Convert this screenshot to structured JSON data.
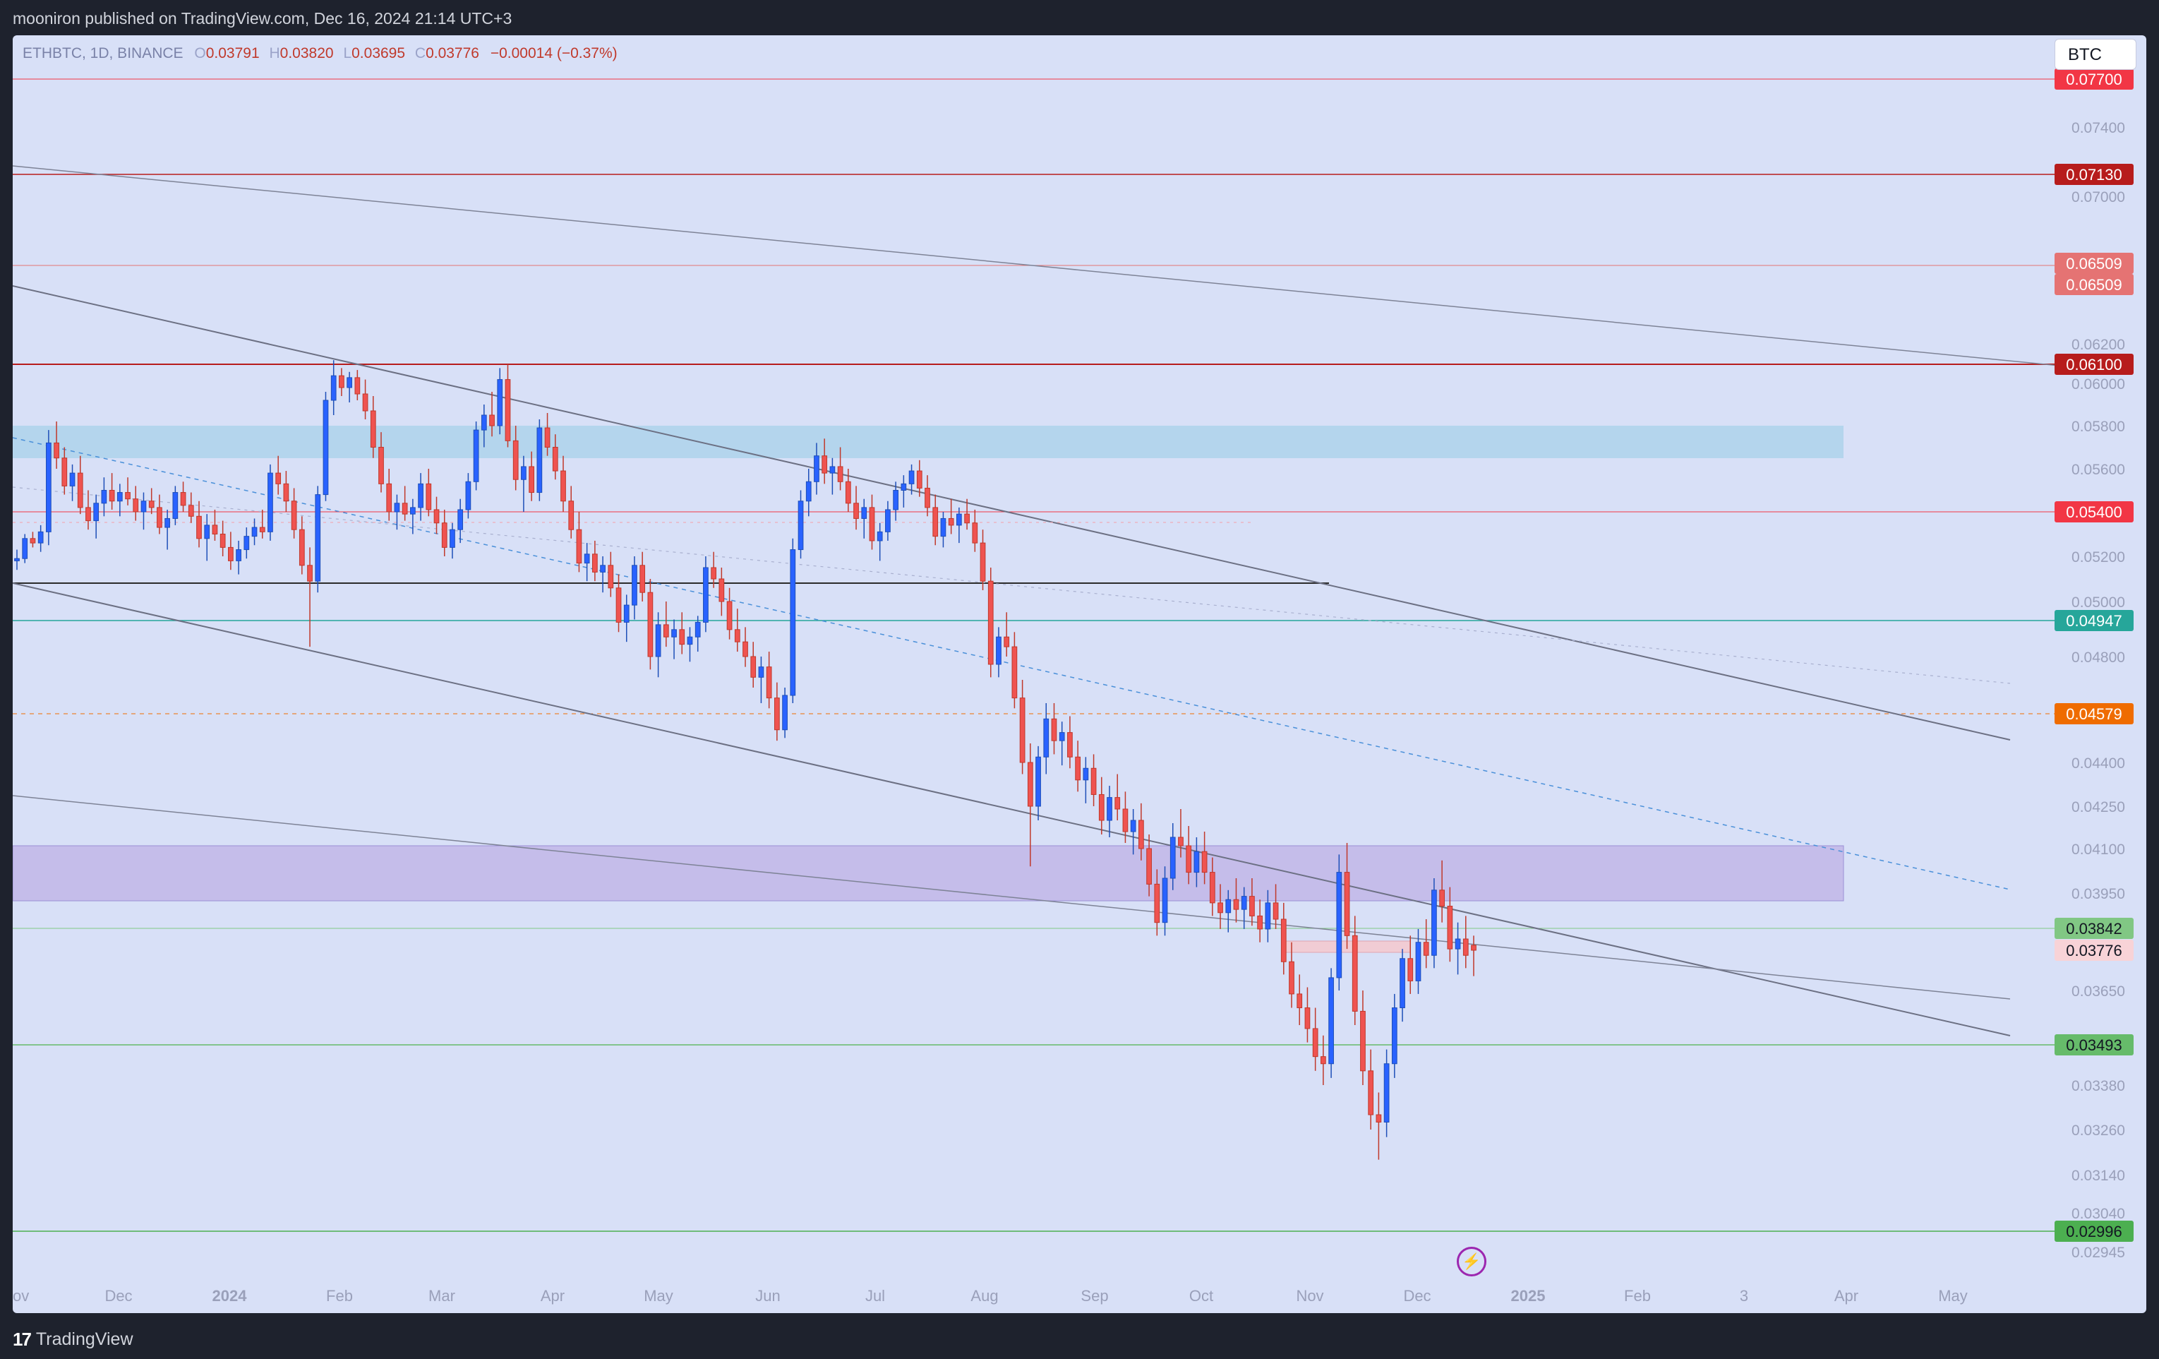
{
  "header": {
    "published_text": "mooniron published on TradingView.com, Dec 16, 2024 21:14 UTC+3"
  },
  "legend": {
    "symbol": "ETHBTC, 1D, BINANCE",
    "o_label": "O",
    "o_value": "0.03791",
    "h_label": "H",
    "h_value": "0.03820",
    "l_label": "L",
    "l_value": "0.03695",
    "c_label": "C",
    "c_value": "0.03776",
    "change": "−0.00014 (−0.37%)"
  },
  "currency_button": "BTC",
  "footer": {
    "brand": "TradingView",
    "logo_mark": "17"
  },
  "bolt_icon": "⚡",
  "chart_data": {
    "type": "candlestick",
    "y_ticks": [
      "0.07400",
      "0.07000",
      "0.06200",
      "0.06000",
      "0.05800",
      "0.05600",
      "0.05200",
      "0.05000",
      "0.04800",
      "0.04400",
      "0.04250",
      "0.04100",
      "0.03950",
      "0.03650",
      "0.03380",
      "0.03260",
      "0.03140",
      "0.03040",
      "0.02945"
    ],
    "x_ticks": [
      "ov",
      "Dec",
      "2024",
      "Feb",
      "Mar",
      "Apr",
      "May",
      "Jun",
      "Jul",
      "Aug",
      "Sep",
      "Oct",
      "Nov",
      "Dec",
      "2025",
      "Feb",
      "3",
      "Apr",
      "May"
    ],
    "price_labels": [
      {
        "value": "0.07700",
        "color": "#f23645"
      },
      {
        "value": "0.07130",
        "color": "#b71c1c"
      },
      {
        "value": "0.06509",
        "color": "#e57373"
      },
      {
        "value": "0.06509",
        "color": "#e57373"
      },
      {
        "value": "0.06100",
        "color": "#b71c1c"
      },
      {
        "value": "0.05400",
        "color": "#f23645"
      },
      {
        "value": "0.04947",
        "color": "#26a69a"
      },
      {
        "value": "0.04579",
        "color": "#ef6c00"
      },
      {
        "value": "0.03842",
        "color": "#81c784"
      },
      {
        "value": "0.03776",
        "color": "#f8d3d7"
      },
      {
        "value": "0.03493",
        "color": "#66bb6a"
      },
      {
        "value": "0.02996",
        "color": "#4caf50"
      }
    ],
    "candles": [
      [
        0.0518,
        0.0523,
        0.0514,
        0.0519
      ],
      [
        0.0519,
        0.053,
        0.0517,
        0.0528
      ],
      [
        0.0528,
        0.0531,
        0.0524,
        0.0526
      ],
      [
        0.0526,
        0.0534,
        0.0522,
        0.0531
      ],
      [
        0.0531,
        0.0578,
        0.0525,
        0.0572
      ],
      [
        0.0572,
        0.0582,
        0.056,
        0.0565
      ],
      [
        0.0565,
        0.057,
        0.0548,
        0.0552
      ],
      [
        0.0552,
        0.0562,
        0.0545,
        0.0558
      ],
      [
        0.0558,
        0.0566,
        0.0539,
        0.0542
      ],
      [
        0.0542,
        0.055,
        0.0532,
        0.0536
      ],
      [
        0.0536,
        0.0548,
        0.0528,
        0.0544
      ],
      [
        0.0544,
        0.0556,
        0.0538,
        0.055
      ],
      [
        0.055,
        0.0558,
        0.0541,
        0.0545
      ],
      [
        0.0545,
        0.0553,
        0.0538,
        0.0549
      ],
      [
        0.0549,
        0.0556,
        0.0543,
        0.0546
      ],
      [
        0.0546,
        0.0552,
        0.0536,
        0.054
      ],
      [
        0.054,
        0.0549,
        0.0532,
        0.0545
      ],
      [
        0.0545,
        0.0551,
        0.0539,
        0.0542
      ],
      [
        0.0542,
        0.0548,
        0.053,
        0.0533
      ],
      [
        0.0533,
        0.0541,
        0.0523,
        0.0537
      ],
      [
        0.0537,
        0.0552,
        0.0534,
        0.0549
      ],
      [
        0.0549,
        0.0554,
        0.054,
        0.0543
      ],
      [
        0.0543,
        0.0549,
        0.0535,
        0.0538
      ],
      [
        0.0538,
        0.0545,
        0.0524,
        0.0528
      ],
      [
        0.0528,
        0.0539,
        0.0518,
        0.0534
      ],
      [
        0.0534,
        0.0541,
        0.0527,
        0.053
      ],
      [
        0.053,
        0.0536,
        0.052,
        0.0524
      ],
      [
        0.0524,
        0.0531,
        0.0514,
        0.0518
      ],
      [
        0.0518,
        0.0527,
        0.0512,
        0.0523
      ],
      [
        0.0523,
        0.0533,
        0.0519,
        0.0529
      ],
      [
        0.0529,
        0.0537,
        0.0525,
        0.0533
      ],
      [
        0.0533,
        0.0541,
        0.0528,
        0.0531
      ],
      [
        0.0531,
        0.0562,
        0.0527,
        0.0558
      ],
      [
        0.0558,
        0.0566,
        0.0548,
        0.0553
      ],
      [
        0.0553,
        0.0559,
        0.054,
        0.0545
      ],
      [
        0.0545,
        0.0551,
        0.0528,
        0.0532
      ],
      [
        0.0532,
        0.0538,
        0.0512,
        0.0516
      ],
      [
        0.0516,
        0.0524,
        0.0484,
        0.0509
      ],
      [
        0.0509,
        0.0552,
        0.0504,
        0.0548
      ],
      [
        0.0548,
        0.0596,
        0.0545,
        0.0592
      ],
      [
        0.0592,
        0.0612,
        0.0585,
        0.0604
      ],
      [
        0.0604,
        0.0608,
        0.0594,
        0.0598
      ],
      [
        0.0598,
        0.0606,
        0.0591,
        0.0603
      ],
      [
        0.0603,
        0.0607,
        0.0592,
        0.0595
      ],
      [
        0.0595,
        0.0602,
        0.0583,
        0.0587
      ],
      [
        0.0587,
        0.0594,
        0.0565,
        0.057
      ],
      [
        0.057,
        0.0577,
        0.0549,
        0.0553
      ],
      [
        0.0553,
        0.056,
        0.0536,
        0.054
      ],
      [
        0.054,
        0.0548,
        0.0532,
        0.0544
      ],
      [
        0.0544,
        0.0552,
        0.0536,
        0.0539
      ],
      [
        0.0539,
        0.0546,
        0.053,
        0.0542
      ],
      [
        0.0542,
        0.0558,
        0.0536,
        0.0553
      ],
      [
        0.0553,
        0.056,
        0.0538,
        0.0541
      ],
      [
        0.0541,
        0.0547,
        0.053,
        0.0535
      ],
      [
        0.0535,
        0.0541,
        0.052,
        0.0524
      ],
      [
        0.0524,
        0.0535,
        0.0519,
        0.0532
      ],
      [
        0.0532,
        0.0546,
        0.0526,
        0.0541
      ],
      [
        0.0541,
        0.0558,
        0.0537,
        0.0554
      ],
      [
        0.0554,
        0.0582,
        0.055,
        0.0578
      ],
      [
        0.0578,
        0.059,
        0.057,
        0.0585
      ],
      [
        0.0585,
        0.0596,
        0.0575,
        0.058
      ],
      [
        0.058,
        0.0608,
        0.0576,
        0.0602
      ],
      [
        0.0602,
        0.061,
        0.057,
        0.0573
      ],
      [
        0.0573,
        0.058,
        0.055,
        0.0555
      ],
      [
        0.0555,
        0.0566,
        0.054,
        0.0561
      ],
      [
        0.0561,
        0.0568,
        0.0545,
        0.0549
      ],
      [
        0.0549,
        0.0583,
        0.0545,
        0.0579
      ],
      [
        0.0579,
        0.0586,
        0.0566,
        0.057
      ],
      [
        0.057,
        0.0576,
        0.0555,
        0.0559
      ],
      [
        0.0559,
        0.0566,
        0.054,
        0.0545
      ],
      [
        0.0545,
        0.0552,
        0.0528,
        0.0532
      ],
      [
        0.0532,
        0.054,
        0.0513,
        0.0517
      ],
      [
        0.0517,
        0.0526,
        0.0509,
        0.0521
      ],
      [
        0.0521,
        0.0527,
        0.0509,
        0.0513
      ],
      [
        0.0513,
        0.052,
        0.0504,
        0.0516
      ],
      [
        0.0516,
        0.0522,
        0.0502,
        0.0506
      ],
      [
        0.0506,
        0.0512,
        0.049,
        0.0494
      ],
      [
        0.0494,
        0.0503,
        0.0486,
        0.0499
      ],
      [
        0.0499,
        0.052,
        0.0495,
        0.0516
      ],
      [
        0.0516,
        0.0522,
        0.05,
        0.0504
      ],
      [
        0.0504,
        0.051,
        0.0475,
        0.048
      ],
      [
        0.048,
        0.0497,
        0.0472,
        0.0493
      ],
      [
        0.0493,
        0.05,
        0.0484,
        0.0488
      ],
      [
        0.0488,
        0.0495,
        0.0479,
        0.0491
      ],
      [
        0.0491,
        0.0497,
        0.0481,
        0.0485
      ],
      [
        0.0485,
        0.0492,
        0.0478,
        0.0488
      ],
      [
        0.0488,
        0.0496,
        0.0482,
        0.0494
      ],
      [
        0.0494,
        0.052,
        0.049,
        0.0515
      ],
      [
        0.0515,
        0.0522,
        0.0506,
        0.051
      ],
      [
        0.051,
        0.0515,
        0.0496,
        0.05
      ],
      [
        0.05,
        0.0506,
        0.0487,
        0.0491
      ],
      [
        0.0491,
        0.0498,
        0.0482,
        0.0486
      ],
      [
        0.0486,
        0.0492,
        0.0476,
        0.048
      ],
      [
        0.048,
        0.0486,
        0.0468,
        0.0472
      ],
      [
        0.0472,
        0.048,
        0.0462,
        0.0476
      ],
      [
        0.0476,
        0.0482,
        0.046,
        0.0464
      ],
      [
        0.0464,
        0.047,
        0.0448,
        0.0452
      ],
      [
        0.0452,
        0.0468,
        0.0449,
        0.0465
      ],
      [
        0.0465,
        0.0528,
        0.0462,
        0.0523
      ],
      [
        0.0523,
        0.055,
        0.0519,
        0.0545
      ],
      [
        0.0545,
        0.056,
        0.0538,
        0.0554
      ],
      [
        0.0554,
        0.0572,
        0.0548,
        0.0566
      ],
      [
        0.0566,
        0.0574,
        0.0553,
        0.0558
      ],
      [
        0.0558,
        0.0565,
        0.0548,
        0.0561
      ],
      [
        0.0561,
        0.057,
        0.055,
        0.0554
      ],
      [
        0.0554,
        0.056,
        0.054,
        0.0544
      ],
      [
        0.0544,
        0.0552,
        0.0532,
        0.0537
      ],
      [
        0.0537,
        0.0546,
        0.0528,
        0.0542
      ],
      [
        0.0542,
        0.0548,
        0.0523,
        0.0527
      ],
      [
        0.0527,
        0.0535,
        0.0518,
        0.0531
      ],
      [
        0.0531,
        0.0545,
        0.0527,
        0.0541
      ],
      [
        0.0541,
        0.0554,
        0.0536,
        0.055
      ],
      [
        0.055,
        0.0557,
        0.0542,
        0.0553
      ],
      [
        0.0553,
        0.0562,
        0.0548,
        0.0559
      ],
      [
        0.0559,
        0.0564,
        0.0547,
        0.0551
      ],
      [
        0.0551,
        0.0557,
        0.0538,
        0.0542
      ],
      [
        0.0542,
        0.0548,
        0.0525,
        0.0529
      ],
      [
        0.0529,
        0.054,
        0.0524,
        0.0537
      ],
      [
        0.0537,
        0.0546,
        0.053,
        0.0534
      ],
      [
        0.0534,
        0.0542,
        0.0526,
        0.0539
      ],
      [
        0.0539,
        0.0546,
        0.0532,
        0.0535
      ],
      [
        0.0535,
        0.0541,
        0.0522,
        0.0526
      ],
      [
        0.0526,
        0.0532,
        0.0505,
        0.0509
      ],
      [
        0.0509,
        0.0515,
        0.0472,
        0.0477
      ],
      [
        0.0477,
        0.0492,
        0.0472,
        0.0488
      ],
      [
        0.0488,
        0.0497,
        0.048,
        0.0484
      ],
      [
        0.0484,
        0.049,
        0.046,
        0.0464
      ],
      [
        0.0464,
        0.0471,
        0.0436,
        0.044
      ],
      [
        0.044,
        0.0447,
        0.0404,
        0.0425
      ],
      [
        0.0425,
        0.0446,
        0.042,
        0.0442
      ],
      [
        0.0442,
        0.0462,
        0.0436,
        0.0456
      ],
      [
        0.0456,
        0.0462,
        0.0443,
        0.0448
      ],
      [
        0.0448,
        0.0455,
        0.0439,
        0.0451
      ],
      [
        0.0451,
        0.0457,
        0.0438,
        0.0442
      ],
      [
        0.0442,
        0.0448,
        0.043,
        0.0434
      ],
      [
        0.0434,
        0.0442,
        0.0426,
        0.0438
      ],
      [
        0.0438,
        0.0443,
        0.0425,
        0.0429
      ],
      [
        0.0429,
        0.0435,
        0.0415,
        0.042
      ],
      [
        0.042,
        0.0432,
        0.0414,
        0.0428
      ],
      [
        0.0428,
        0.0436,
        0.042,
        0.0424
      ],
      [
        0.0424,
        0.043,
        0.0412,
        0.0416
      ],
      [
        0.0416,
        0.0424,
        0.0408,
        0.042
      ],
      [
        0.042,
        0.0426,
        0.0406,
        0.041
      ],
      [
        0.041,
        0.0415,
        0.0394,
        0.0398
      ],
      [
        0.0398,
        0.0403,
        0.0382,
        0.0386
      ],
      [
        0.0386,
        0.0404,
        0.0382,
        0.04
      ],
      [
        0.04,
        0.0419,
        0.0396,
        0.0414
      ],
      [
        0.0414,
        0.0424,
        0.0407,
        0.0411
      ],
      [
        0.0411,
        0.0418,
        0.0398,
        0.0402
      ],
      [
        0.0402,
        0.0414,
        0.0397,
        0.0409
      ],
      [
        0.0409,
        0.0416,
        0.0398,
        0.0402
      ],
      [
        0.0402,
        0.0407,
        0.0388,
        0.0392
      ],
      [
        0.0392,
        0.0398,
        0.0384,
        0.0389
      ],
      [
        0.0389,
        0.0396,
        0.0383,
        0.0393
      ],
      [
        0.0393,
        0.04,
        0.0386,
        0.039
      ],
      [
        0.039,
        0.0397,
        0.0384,
        0.0394
      ],
      [
        0.0394,
        0.04,
        0.0385,
        0.0388
      ],
      [
        0.0388,
        0.0393,
        0.038,
        0.0384
      ],
      [
        0.0384,
        0.0396,
        0.038,
        0.0392
      ],
      [
        0.0392,
        0.0398,
        0.0384,
        0.0387
      ],
      [
        0.0387,
        0.0392,
        0.037,
        0.0374
      ],
      [
        0.0374,
        0.038,
        0.036,
        0.0364
      ],
      [
        0.0364,
        0.037,
        0.0355,
        0.036
      ],
      [
        0.036,
        0.0366,
        0.035,
        0.0354
      ],
      [
        0.0354,
        0.036,
        0.0342,
        0.0346
      ],
      [
        0.0346,
        0.0352,
        0.0338,
        0.0344
      ],
      [
        0.0344,
        0.0372,
        0.034,
        0.0369
      ],
      [
        0.0369,
        0.0408,
        0.0365,
        0.0402
      ],
      [
        0.0402,
        0.0412,
        0.0378,
        0.0382
      ],
      [
        0.0382,
        0.0388,
        0.0355,
        0.0359
      ],
      [
        0.0359,
        0.0365,
        0.0338,
        0.0342
      ],
      [
        0.0342,
        0.0348,
        0.0326,
        0.033
      ],
      [
        0.033,
        0.0336,
        0.0318,
        0.0328
      ],
      [
        0.0328,
        0.0348,
        0.0324,
        0.0344
      ],
      [
        0.0344,
        0.0364,
        0.034,
        0.036
      ],
      [
        0.036,
        0.0378,
        0.0356,
        0.0375
      ],
      [
        0.0375,
        0.0382,
        0.0364,
        0.0368
      ],
      [
        0.0368,
        0.0384,
        0.0364,
        0.038
      ],
      [
        0.038,
        0.0387,
        0.0372,
        0.0376
      ],
      [
        0.0376,
        0.04,
        0.0372,
        0.0396
      ],
      [
        0.0396,
        0.0406,
        0.0386,
        0.0391
      ],
      [
        0.0391,
        0.0397,
        0.0374,
        0.0378
      ],
      [
        0.0378,
        0.0386,
        0.037,
        0.0381
      ],
      [
        0.0381,
        0.0388,
        0.0372,
        0.0376
      ],
      [
        0.03791,
        0.0382,
        0.03695,
        0.03776
      ]
    ]
  }
}
